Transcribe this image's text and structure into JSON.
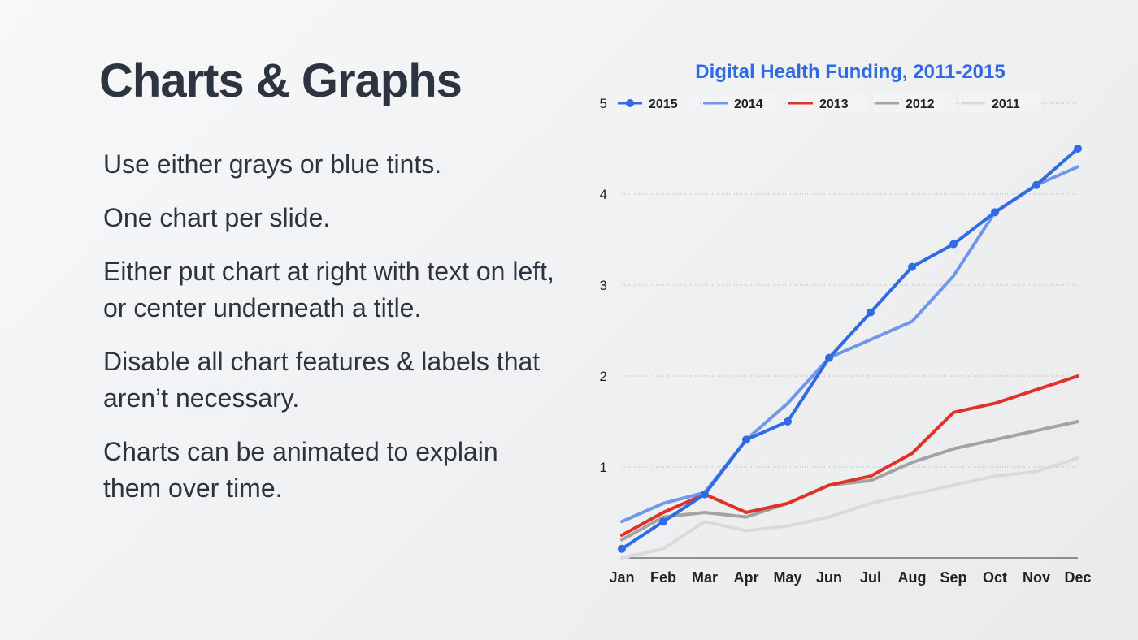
{
  "slide": {
    "title": "Charts & Graphs",
    "bullets": [
      "Use either grays or blue tints.",
      "One chart per slide.",
      "Either put chart at right with text on left, or center underneath a title.",
      "Disable all chart features & labels that aren’t necessary.",
      "Charts can be animated to explain them over time."
    ]
  },
  "chart_data": {
    "type": "line",
    "title": "Digital Health Funding, 2011-2015",
    "title_color": "#2f6be3",
    "categories": [
      "Jan",
      "Feb",
      "Mar",
      "Apr",
      "May",
      "Jun",
      "Jul",
      "Aug",
      "Sep",
      "Oct",
      "Nov",
      "Dec"
    ],
    "ylim": [
      0,
      5
    ],
    "yticks": [
      "1",
      "2",
      "3",
      "4",
      "5"
    ],
    "grid": true,
    "legend": "top",
    "series": [
      {
        "name": "2015",
        "color": "#2f6be3",
        "markers": true,
        "values": [
          0.1,
          0.4,
          0.7,
          1.3,
          1.5,
          2.2,
          2.7,
          3.2,
          3.45,
          3.8,
          4.1,
          4.5
        ]
      },
      {
        "name": "2014",
        "color": "#7197ec",
        "markers": false,
        "values": [
          0.4,
          0.6,
          0.72,
          1.3,
          1.7,
          2.2,
          2.4,
          2.6,
          3.1,
          3.8,
          4.1,
          4.3
        ]
      },
      {
        "name": "2013",
        "color": "#e03226",
        "markers": false,
        "values": [
          0.25,
          0.5,
          0.7,
          0.5,
          0.6,
          0.8,
          0.9,
          1.15,
          1.6,
          1.7,
          1.85,
          2.0
        ]
      },
      {
        "name": "2012",
        "color": "#a3a3a3",
        "markers": false,
        "values": [
          0.2,
          0.45,
          0.5,
          0.45,
          0.6,
          0.8,
          0.85,
          1.05,
          1.2,
          1.3,
          1.4,
          1.5
        ]
      },
      {
        "name": "2011",
        "color": "#dadada",
        "markers": false,
        "values": [
          0.0,
          0.1,
          0.4,
          0.3,
          0.35,
          0.45,
          0.6,
          0.7,
          0.8,
          0.9,
          0.95,
          1.1
        ]
      }
    ]
  }
}
